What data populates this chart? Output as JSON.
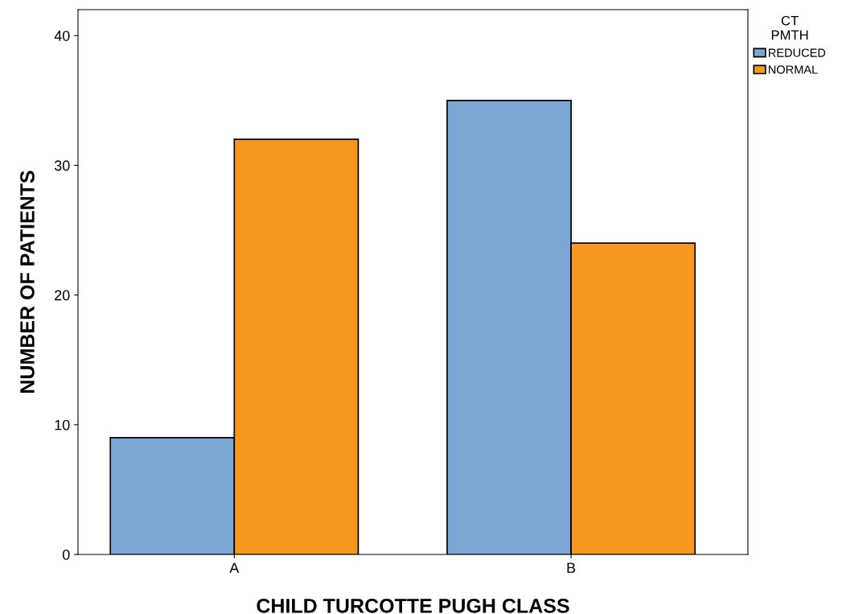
{
  "chart_data": {
    "type": "bar",
    "xlabel": "CHILD TURCOTTE PUGH CLASS",
    "ylabel": "NUMBER OF PATIENTS",
    "legend_title": "CT\nPMTH",
    "legend": "top right",
    "categories": [
      "A",
      "B"
    ],
    "series": [
      {
        "name": "REDUCED",
        "color": "#7ba7d5",
        "values": [
          9,
          35
        ]
      },
      {
        "name": "NORMAL",
        "color": "#f7971e",
        "values": [
          32,
          24
        ]
      }
    ],
    "ylim": [
      0,
      42
    ],
    "yticks": [
      0,
      10,
      20,
      30,
      40
    ],
    "grid": false
  }
}
